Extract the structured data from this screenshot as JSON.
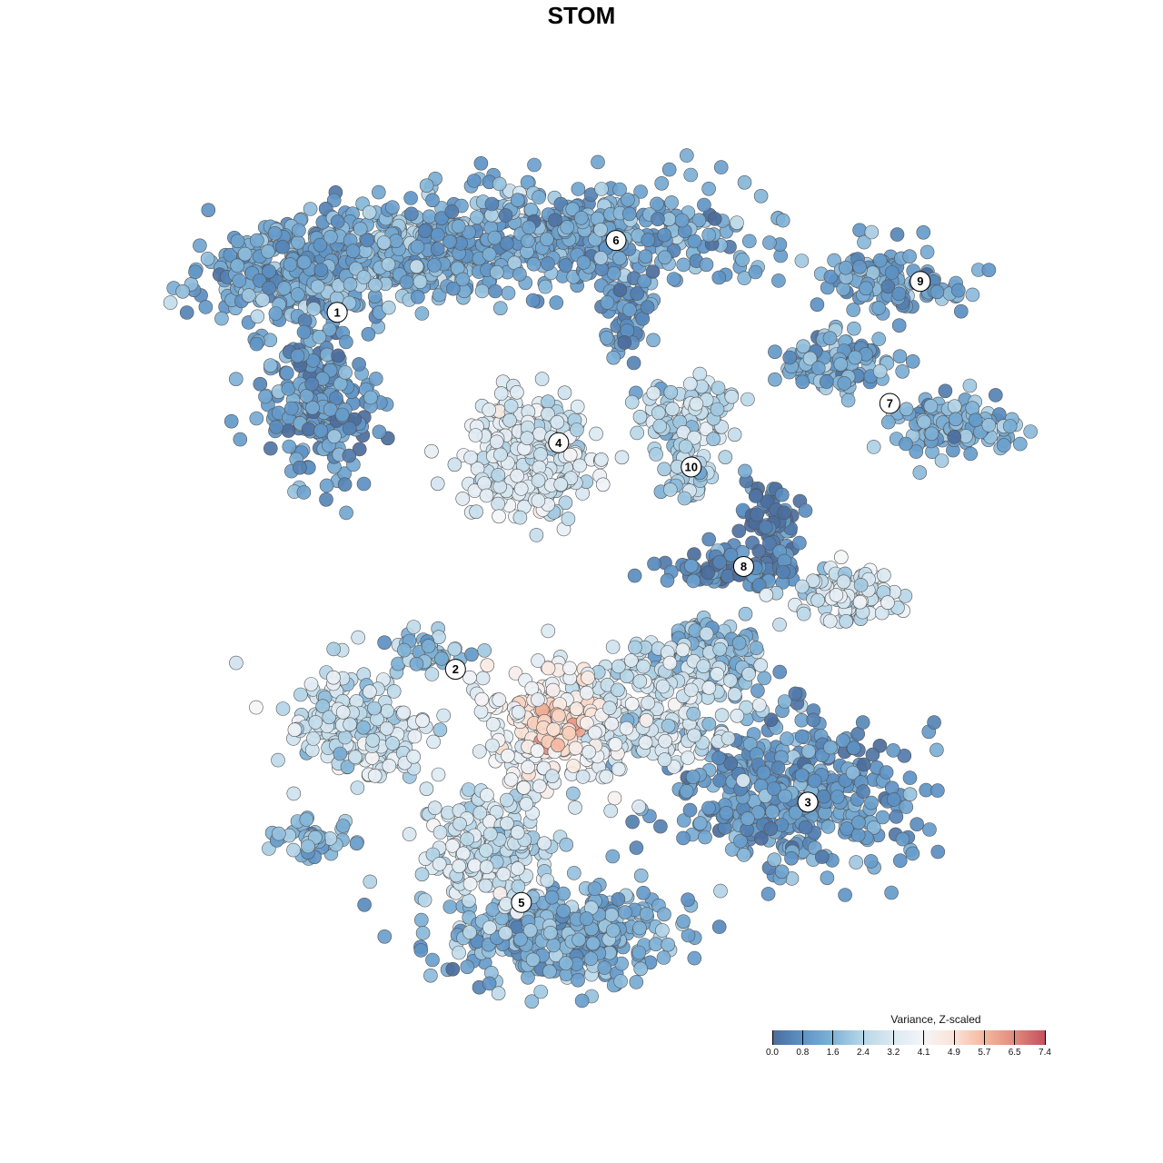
{
  "chart_data": {
    "type": "scatter",
    "title": "STOM",
    "xlabel": "",
    "ylabel": "",
    "xlim": [
      0,
      100
    ],
    "ylim": [
      0,
      100
    ],
    "grid": false,
    "note": "points generated from per-cluster distributions (center, sd, count, mean value) in data units",
    "clusters": [
      {
        "id": "1a",
        "cx": 14.0,
        "cy": 87.0,
        "sx": 5.9,
        "sy": 3.3,
        "n": 350,
        "v": 1.3
      },
      {
        "id": "1b",
        "cx": 16.1,
        "cy": 71.7,
        "sx": 3.2,
        "sy": 4.9,
        "n": 250,
        "v": 1.0
      },
      {
        "id": "1c",
        "cx": 26.9,
        "cy": 89.1,
        "sx": 5.4,
        "sy": 2.7,
        "n": 250,
        "v": 1.6
      },
      {
        "id": "6a",
        "cx": 45.2,
        "cy": 91.3,
        "sx": 10.8,
        "sy": 3.3,
        "n": 450,
        "v": 1.3
      },
      {
        "id": "6b",
        "cx": 52.7,
        "cy": 81.5,
        "sx": 1.6,
        "sy": 2.7,
        "n": 50,
        "v": 0.9
      },
      {
        "id": "9",
        "cx": 83.9,
        "cy": 85.9,
        "sx": 4.8,
        "sy": 1.9,
        "n": 120,
        "v": 1.3
      },
      {
        "id": "7a",
        "cx": 77.4,
        "cy": 76.1,
        "sx": 3.2,
        "sy": 1.6,
        "n": 120,
        "v": 1.4
      },
      {
        "id": "7b",
        "cx": 91.4,
        "cy": 68.5,
        "sx": 3.8,
        "sy": 1.6,
        "n": 120,
        "v": 1.6
      },
      {
        "id": "4",
        "cx": 40.9,
        "cy": 65.2,
        "sx": 3.8,
        "sy": 3.5,
        "n": 280,
        "v": 3.2
      },
      {
        "id": "10a",
        "cx": 60.2,
        "cy": 69.6,
        "sx": 3.2,
        "sy": 2.2,
        "n": 90,
        "v": 2.6
      },
      {
        "id": "10b",
        "cx": 60.2,
        "cy": 62.0,
        "sx": 1.3,
        "sy": 1.6,
        "n": 40,
        "v": 2.3
      },
      {
        "id": "8a",
        "cx": 69.9,
        "cy": 57.6,
        "sx": 1.6,
        "sy": 2.2,
        "n": 70,
        "v": 0.5
      },
      {
        "id": "8b",
        "cx": 64.5,
        "cy": 51.6,
        "sx": 4.3,
        "sy": 1.1,
        "n": 90,
        "v": 0.6
      },
      {
        "id": "8c",
        "cx": 78.5,
        "cy": 48.4,
        "sx": 3.0,
        "sy": 1.6,
        "n": 110,
        "v": 3.0
      },
      {
        "id": "2a",
        "cx": 20.4,
        "cy": 32.6,
        "sx": 4.3,
        "sy": 3.3,
        "n": 200,
        "v": 2.8
      },
      {
        "id": "2b",
        "cx": 29.0,
        "cy": 41.3,
        "sx": 2.2,
        "sy": 1.1,
        "n": 50,
        "v": 1.8
      },
      {
        "id": "small",
        "cx": 15.1,
        "cy": 19.0,
        "sx": 2.2,
        "sy": 1.4,
        "n": 40,
        "v": 1.6
      },
      {
        "id": "mid2",
        "cx": 62.4,
        "cy": 41.3,
        "sx": 3.2,
        "sy": 2.2,
        "n": 120,
        "v": 1.8
      },
      {
        "id": "3",
        "cx": 73.1,
        "cy": 25.0,
        "sx": 7.0,
        "sy": 4.3,
        "n": 450,
        "v": 1.0
      },
      {
        "id": "5a",
        "cx": 45.2,
        "cy": 7.6,
        "sx": 7.0,
        "sy": 2.7,
        "n": 380,
        "v": 1.5
      },
      {
        "id": "5b",
        "cx": 36.6,
        "cy": 18.5,
        "sx": 3.8,
        "sy": 3.3,
        "n": 200,
        "v": 2.9
      },
      {
        "id": "mid",
        "cx": 55.9,
        "cy": 34.8,
        "sx": 4.8,
        "sy": 3.8,
        "n": 250,
        "v": 3.0
      },
      {
        "id": "hot",
        "cx": 44.1,
        "cy": 32.6,
        "sx": 4.3,
        "sy": 3.3,
        "n": 250,
        "v": 4.9
      }
    ],
    "cluster_labels": [
      {
        "label": "1",
        "x": 18.4,
        "y": 82.2
      },
      {
        "label": "2",
        "x": 32.4,
        "y": 39.5
      },
      {
        "label": "3",
        "x": 74.1,
        "y": 23.6
      },
      {
        "label": "4",
        "x": 44.6,
        "y": 66.6
      },
      {
        "label": "5",
        "x": 40.2,
        "y": 11.6
      },
      {
        "label": "6",
        "x": 51.4,
        "y": 90.8
      },
      {
        "label": "7",
        "x": 83.8,
        "y": 71.3
      },
      {
        "label": "8",
        "x": 66.5,
        "y": 51.8
      },
      {
        "label": "9",
        "x": 87.4,
        "y": 85.9
      },
      {
        "label": "10",
        "x": 60.3,
        "y": 63.7
      }
    ],
    "legend": {
      "title": "Variance, Z-scaled",
      "placement": "bottom-right",
      "ticks": [
        "0.0",
        "0.8",
        "1.6",
        "2.4",
        "3.2",
        "4.1",
        "4.9",
        "5.7",
        "6.5",
        "7.4"
      ],
      "range": [
        0.0,
        7.4
      ],
      "colors": [
        "#4b6c9c",
        "#5d93c6",
        "#80b3d7",
        "#b8d7e8",
        "#dce9f2",
        "#f4f5f7",
        "#fbe3d7",
        "#f4b89e",
        "#e08a7d",
        "#c4505f"
      ]
    }
  }
}
